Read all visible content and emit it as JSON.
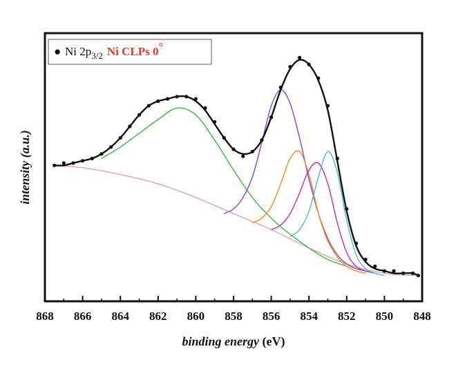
{
  "chart_data": {
    "type": "scatter",
    "title": "",
    "xlabel": {
      "italic": "binding energy",
      "unit": " (eV)"
    },
    "ylabel": "intensity (a.u.)",
    "xlim": [
      868,
      848
    ],
    "x_reversed": true,
    "ylim": [
      0,
      1
    ],
    "y_ticks_labeled": false,
    "x_ticks": [
      868,
      866,
      864,
      862,
      860,
      858,
      856,
      854,
      852,
      850,
      848
    ],
    "x_tick_labels": [
      "868",
      "866",
      "864",
      "862",
      "860",
      "858",
      "856",
      "854",
      "852",
      "850",
      "848"
    ],
    "grid": false,
    "legend": {
      "placement": "top-left",
      "marker": "●",
      "base": "Ni 2p",
      "subscript": "3/2",
      "sample": "Ni CLPs 0",
      "degree": "°"
    },
    "colors": {
      "data": "#111111",
      "fit": "#111111",
      "background": "#d8a8a8",
      "component_green": "#3cb83c",
      "component_purple": "#8e3fc9",
      "component_orange": "#f2891a",
      "component_magenta": "#c12ca6",
      "component_cyan": "#49b8dc",
      "legend_red": "#e03c2b"
    },
    "series": [
      {
        "role": "data-points",
        "x": [
          867.5,
          867,
          866.5,
          866,
          865.5,
          865,
          864.5,
          864,
          863.5,
          863,
          862.5,
          862,
          861.5,
          861,
          860.5,
          860,
          859.5,
          859,
          858.5,
          858,
          857.5,
          857,
          856.5,
          856,
          855.5,
          855,
          854.5,
          854,
          853.5,
          853,
          852.5,
          852,
          851.5,
          851,
          850.5,
          850,
          849.5,
          849,
          848.5,
          848.2
        ],
        "y": [
          0.52,
          0.53,
          0.53,
          0.54,
          0.55,
          0.57,
          0.6,
          0.64,
          0.69,
          0.74,
          0.78,
          0.8,
          0.81,
          0.82,
          0.82,
          0.81,
          0.77,
          0.71,
          0.64,
          0.59,
          0.56,
          0.58,
          0.63,
          0.73,
          0.86,
          0.95,
          0.99,
          0.96,
          0.9,
          0.78,
          0.55,
          0.33,
          0.18,
          0.11,
          0.08,
          0.06,
          0.06,
          0.05,
          0.05,
          0.04
        ]
      },
      {
        "role": "envelope-fit",
        "x": [
          867.5,
          867,
          866.5,
          866,
          865.5,
          865,
          864.5,
          864,
          863.5,
          863,
          862.5,
          862,
          861.5,
          861,
          860.5,
          860,
          859.5,
          859,
          858.5,
          858,
          857.5,
          857,
          856.5,
          856,
          855.5,
          855,
          854.5,
          854,
          853.5,
          853,
          852.5,
          852,
          851.5,
          851,
          850.5,
          850,
          849.5,
          849,
          848.5,
          848.2
        ],
        "y": [
          0.52,
          0.52,
          0.53,
          0.54,
          0.55,
          0.57,
          0.6,
          0.64,
          0.69,
          0.74,
          0.78,
          0.8,
          0.81,
          0.82,
          0.82,
          0.8,
          0.76,
          0.7,
          0.64,
          0.59,
          0.57,
          0.58,
          0.63,
          0.73,
          0.85,
          0.94,
          0.98,
          0.96,
          0.89,
          0.76,
          0.54,
          0.32,
          0.17,
          0.1,
          0.07,
          0.06,
          0.05,
          0.05,
          0.05,
          0.04
        ]
      },
      {
        "role": "background",
        "x": [
          867.5,
          866,
          864,
          862,
          860,
          858,
          856,
          854,
          852,
          850,
          848.2
        ],
        "y": [
          0.52,
          0.51,
          0.48,
          0.44,
          0.38,
          0.31,
          0.24,
          0.16,
          0.09,
          0.05,
          0.04
        ]
      },
      {
        "role": "component-green",
        "x": [
          865,
          864,
          863,
          862,
          861,
          860,
          859,
          858,
          857,
          856,
          855,
          854,
          853,
          852
        ],
        "y": [
          0.55,
          0.6,
          0.66,
          0.72,
          0.77,
          0.74,
          0.63,
          0.5,
          0.38,
          0.29,
          0.22,
          0.16,
          0.11,
          0.08
        ]
      },
      {
        "role": "component-purple",
        "x": [
          858.5,
          858,
          857.5,
          857,
          856.5,
          856,
          855.5,
          855,
          854.5,
          854,
          853.5,
          853,
          852.5,
          852,
          851.5,
          851,
          850.5
        ],
        "y": [
          0.31,
          0.33,
          0.38,
          0.47,
          0.62,
          0.78,
          0.85,
          0.79,
          0.64,
          0.46,
          0.31,
          0.2,
          0.13,
          0.09,
          0.07,
          0.06,
          0.05
        ]
      },
      {
        "role": "component-orange",
        "x": [
          857,
          856.5,
          856,
          855.5,
          855,
          854.5,
          854,
          853.5,
          853,
          852.5,
          852,
          851.5,
          851
        ],
        "y": [
          0.27,
          0.29,
          0.34,
          0.44,
          0.55,
          0.58,
          0.48,
          0.31,
          0.19,
          0.12,
          0.08,
          0.06,
          0.05
        ]
      },
      {
        "role": "component-magenta",
        "x": [
          856,
          855.5,
          855,
          854.5,
          854,
          853.5,
          853,
          852.5,
          852,
          851.5,
          851,
          850.5
        ],
        "y": [
          0.24,
          0.26,
          0.31,
          0.4,
          0.5,
          0.53,
          0.44,
          0.27,
          0.14,
          0.08,
          0.06,
          0.05
        ]
      },
      {
        "role": "component-cyan",
        "x": [
          855,
          854.5,
          854,
          853.5,
          853,
          852.5,
          852,
          851.5,
          851,
          850.5,
          850
        ],
        "y": [
          0.21,
          0.24,
          0.32,
          0.47,
          0.58,
          0.49,
          0.28,
          0.13,
          0.07,
          0.05,
          0.04
        ]
      }
    ]
  }
}
